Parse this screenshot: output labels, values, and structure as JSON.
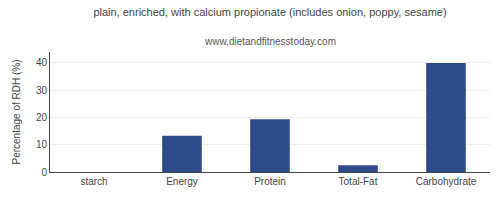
{
  "chart_data": {
    "type": "bar",
    "title": "plain, enriched, with calcium propionate (includes onion, poppy, sesame)",
    "subtitle": "www.dietandfitnesstoday.com",
    "categories": [
      "starch",
      "Energy",
      "Protein",
      "Total-Fat",
      "Carbohydrate"
    ],
    "values": [
      0,
      13.3,
      19.3,
      2.5,
      40.0
    ],
    "color": "#2E4B8A",
    "ylabel": "Percentage of RDH (%)",
    "ylim": [
      0,
      44
    ],
    "yticks": [
      0,
      10,
      20,
      30,
      40
    ],
    "grid": true
  }
}
